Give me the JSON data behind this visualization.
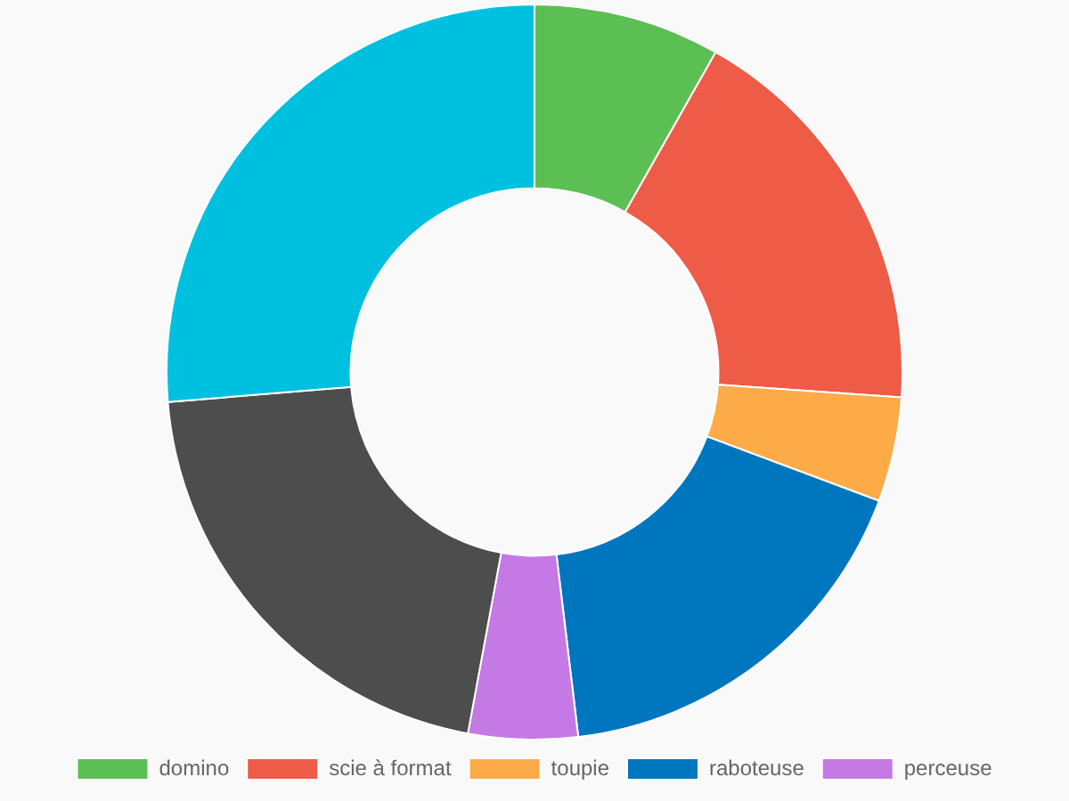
{
  "chart_data": {
    "type": "donut",
    "categories": [
      "domino",
      "scie à format",
      "toupie",
      "raboteuse",
      "perceuse",
      null,
      null
    ],
    "values": [
      8.2,
      17.9,
      4.6,
      17.4,
      4.8,
      20.8,
      26.3
    ],
    "colors": [
      "#5cbf54",
      "#ee5b47",
      "#fdab48",
      "#0076bf",
      "#c579e4",
      "#4d4d4d",
      "#00c0e0"
    ],
    "legend": "bottom"
  }
}
